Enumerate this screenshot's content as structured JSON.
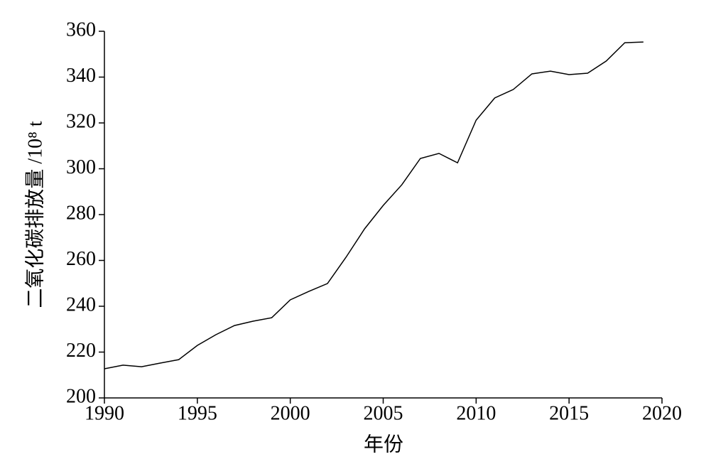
{
  "chart_data": {
    "type": "line",
    "x_label": "年份",
    "y_label": "二氧化碳排放量 /10⁸ t",
    "x": [
      1990,
      1991,
      1992,
      1993,
      1994,
      1995,
      1996,
      1997,
      1998,
      1999,
      2000,
      2001,
      2002,
      2003,
      2004,
      2005,
      2006,
      2007,
      2008,
      2009,
      2010,
      2011,
      2012,
      2013,
      2014,
      2015,
      2016,
      2017,
      2018,
      2019
    ],
    "series": [
      {
        "color": "#000000",
        "values": [
          212.7,
          214.3,
          213.6,
          215.2,
          216.7,
          222.9,
          227.6,
          231.6,
          233.5,
          235.0,
          242.8,
          246.5,
          249.9,
          261.4,
          273.8,
          284.0,
          293.0,
          304.5,
          306.7,
          302.6,
          321.2,
          330.9,
          334.6,
          341.4,
          342.6,
          341.1,
          341.7,
          347.0,
          355.0,
          355.3
        ]
      }
    ],
    "xlim": [
      1990,
      2020
    ],
    "xticks": [
      1990,
      1995,
      2000,
      2005,
      2010,
      2015,
      2020
    ],
    "ylim": [
      200,
      360
    ],
    "yticks": [
      200,
      220,
      240,
      260,
      280,
      300,
      320,
      340,
      360
    ],
    "grid": false
  }
}
